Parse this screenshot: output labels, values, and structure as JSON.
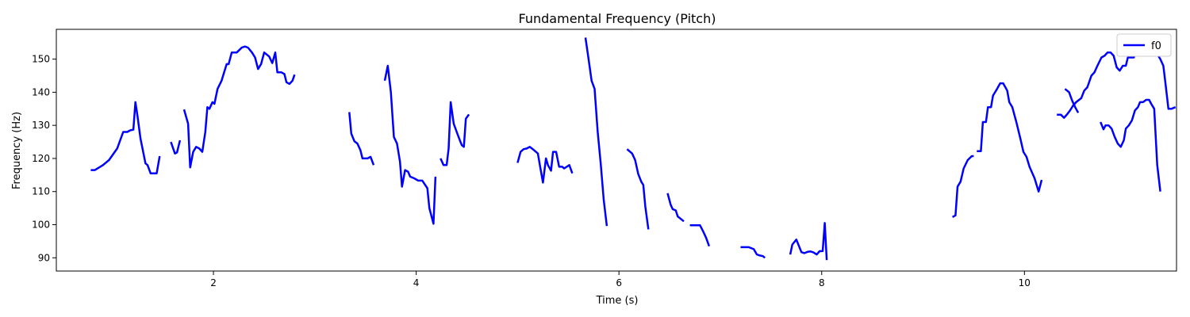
{
  "chart_data": {
    "type": "line",
    "title": "Fundamental Frequency (Pitch)",
    "xlabel": "Time (s)",
    "ylabel": "Frequency (Hz)",
    "xlim": [
      0.45,
      11.5
    ],
    "ylim": [
      86,
      159
    ],
    "xticks": [
      2,
      4,
      6,
      8,
      10
    ],
    "yticks": [
      90,
      100,
      110,
      120,
      130,
      140,
      150
    ],
    "grid": false,
    "legend_position": "top-right",
    "series": [
      {
        "name": "f0",
        "color": "#0000ff",
        "segments": [
          [
            [
              0.79,
              116.5
            ],
            [
              0.83,
              116.5
            ],
            [
              0.91,
              118
            ],
            [
              0.97,
              119.5
            ],
            [
              1.05,
              123
            ],
            [
              1.11,
              128
            ],
            [
              1.15,
              128
            ],
            [
              1.18,
              128.5
            ],
            [
              1.21,
              128.7
            ],
            [
              1.23,
              137
            ],
            [
              1.25,
              133
            ],
            [
              1.28,
              126
            ],
            [
              1.33,
              118.5
            ],
            [
              1.35,
              118
            ],
            [
              1.38,
              115.5
            ],
            [
              1.44,
              115.5
            ],
            [
              1.47,
              120.7
            ]
          ],
          [
            [
              1.58,
              125
            ],
            [
              1.62,
              121.5
            ],
            [
              1.64,
              121.8
            ],
            [
              1.67,
              125.5
            ]
          ],
          [
            [
              1.71,
              134.8
            ],
            [
              1.75,
              130.5
            ],
            [
              1.77,
              117.3
            ],
            [
              1.8,
              122
            ],
            [
              1.83,
              123.5
            ],
            [
              1.86,
              123
            ],
            [
              1.89,
              122
            ],
            [
              1.92,
              128
            ],
            [
              1.94,
              135.5
            ],
            [
              1.96,
              135
            ],
            [
              1.99,
              137
            ],
            [
              2.01,
              136.5
            ],
            [
              2.04,
              141
            ],
            [
              2.08,
              143.5
            ],
            [
              2.13,
              148.5
            ],
            [
              2.15,
              148.5
            ],
            [
              2.18,
              152
            ],
            [
              2.23,
              152
            ],
            [
              2.28,
              153.5
            ],
            [
              2.31,
              153.8
            ],
            [
              2.34,
              153.5
            ],
            [
              2.38,
              152
            ],
            [
              2.41,
              150.5
            ],
            [
              2.44,
              147
            ],
            [
              2.47,
              148.5
            ],
            [
              2.5,
              152
            ],
            [
              2.55,
              150.8
            ],
            [
              2.58,
              148.8
            ],
            [
              2.61,
              152
            ],
            [
              2.63,
              146
            ],
            [
              2.67,
              146
            ],
            [
              2.7,
              145.5
            ],
            [
              2.72,
              143
            ],
            [
              2.75,
              142.5
            ],
            [
              2.78,
              143.5
            ],
            [
              2.8,
              145.3
            ]
          ],
          [
            [
              3.34,
              134
            ],
            [
              3.36,
              127.5
            ],
            [
              3.39,
              125.2
            ],
            [
              3.42,
              124.5
            ],
            [
              3.45,
              122.5
            ],
            [
              3.47,
              120
            ],
            [
              3.52,
              120
            ],
            [
              3.55,
              120.5
            ],
            [
              3.58,
              118
            ]
          ],
          [
            [
              3.69,
              143.5
            ],
            [
              3.72,
              148
            ],
            [
              3.75,
              140
            ],
            [
              3.78,
              126.5
            ],
            [
              3.81,
              124.5
            ],
            [
              3.84,
              119
            ],
            [
              3.86,
              111.5
            ],
            [
              3.89,
              116.5
            ],
            [
              3.92,
              116
            ],
            [
              3.94,
              114.5
            ],
            [
              3.98,
              114
            ],
            [
              4.02,
              113.3
            ],
            [
              4.06,
              113.3
            ],
            [
              4.11,
              111
            ],
            [
              4.13,
              105
            ],
            [
              4.17,
              100.3
            ],
            [
              4.19,
              114.5
            ]
          ],
          [
            [
              4.24,
              120
            ],
            [
              4.27,
              118
            ],
            [
              4.3,
              118
            ],
            [
              4.32,
              123
            ],
            [
              4.34,
              137
            ],
            [
              4.37,
              130.5
            ],
            [
              4.4,
              128
            ],
            [
              4.43,
              125.5
            ],
            [
              4.45,
              124
            ],
            [
              4.47,
              123.5
            ],
            [
              4.49,
              132
            ],
            [
              4.52,
              133.3
            ]
          ],
          [
            [
              5.0,
              118.7
            ],
            [
              5.03,
              122
            ],
            [
              5.06,
              122.8
            ],
            [
              5.09,
              123
            ],
            [
              5.12,
              123.5
            ],
            [
              5.15,
              122.8
            ],
            [
              5.2,
              121.5
            ],
            [
              5.22,
              118
            ],
            [
              5.25,
              112.7
            ],
            [
              5.28,
              120
            ],
            [
              5.3,
              118
            ],
            [
              5.33,
              116.3
            ],
            [
              5.35,
              122
            ],
            [
              5.38,
              122
            ],
            [
              5.41,
              117.5
            ],
            [
              5.44,
              117.5
            ],
            [
              5.46,
              117
            ],
            [
              5.51,
              118
            ],
            [
              5.54,
              115.5
            ]
          ],
          [
            [
              5.67,
              156.5
            ],
            [
              5.7,
              150
            ],
            [
              5.73,
              143.5
            ],
            [
              5.76,
              141
            ],
            [
              5.79,
              128
            ],
            [
              5.82,
              118.5
            ],
            [
              5.85,
              107.5
            ],
            [
              5.88,
              99.6
            ]
          ],
          [
            [
              6.08,
              122.8
            ],
            [
              6.13,
              121.5
            ],
            [
              6.16,
              119.5
            ],
            [
              6.19,
              115.3
            ],
            [
              6.22,
              113
            ],
            [
              6.24,
              112
            ],
            [
              6.26,
              105.5
            ],
            [
              6.29,
              98.6
            ]
          ],
          [
            [
              6.48,
              109.5
            ],
            [
              6.51,
              106
            ],
            [
              6.53,
              104.7
            ],
            [
              6.56,
              104.3
            ],
            [
              6.58,
              102.5
            ],
            [
              6.6,
              102
            ],
            [
              6.64,
              101
            ]
          ],
          [
            [
              6.7,
              99.8
            ],
            [
              6.8,
              99.8
            ],
            [
              6.83,
              98
            ],
            [
              6.86,
              96
            ],
            [
              6.89,
              93.5
            ]
          ],
          [
            [
              7.2,
              93.2
            ],
            [
              7.28,
              93.2
            ],
            [
              7.33,
              92.6
            ],
            [
              7.36,
              91
            ],
            [
              7.39,
              90.7
            ],
            [
              7.42,
              90.5
            ],
            [
              7.44,
              90
            ]
          ],
          [
            [
              7.69,
              91
            ],
            [
              7.71,
              94
            ],
            [
              7.75,
              95.5
            ],
            [
              7.8,
              91.7
            ],
            [
              7.83,
              91.4
            ],
            [
              7.86,
              91.8
            ],
            [
              7.89,
              91.9
            ],
            [
              7.92,
              91.6
            ],
            [
              7.95,
              91
            ],
            [
              7.98,
              92
            ],
            [
              8.01,
              92
            ],
            [
              8.03,
              100.5
            ],
            [
              8.05,
              89.3
            ]
          ],
          [
            [
              9.29,
              102.3
            ],
            [
              9.32,
              102.8
            ],
            [
              9.34,
              111.5
            ],
            [
              9.37,
              113
            ],
            [
              9.4,
              117
            ],
            [
              9.44,
              119.5
            ],
            [
              9.48,
              120.7
            ],
            [
              9.5,
              120.7
            ]
          ],
          [
            [
              9.53,
              122.2
            ],
            [
              9.57,
              122.2
            ],
            [
              9.59,
              131
            ],
            [
              9.62,
              131
            ],
            [
              9.64,
              135.5
            ],
            [
              9.67,
              135.5
            ],
            [
              9.69,
              139
            ],
            [
              9.73,
              141
            ],
            [
              9.76,
              142.7
            ],
            [
              9.79,
              142.7
            ],
            [
              9.83,
              140.5
            ],
            [
              9.85,
              137
            ],
            [
              9.88,
              135.5
            ],
            [
              9.92,
              131
            ],
            [
              9.96,
              126
            ],
            [
              9.99,
              122
            ],
            [
              10.02,
              120.5
            ],
            [
              10.05,
              117.5
            ],
            [
              10.1,
              114
            ],
            [
              10.14,
              110
            ],
            [
              10.17,
              113.5
            ]
          ],
          [
            [
              10.32,
              133.2
            ],
            [
              10.36,
              133.2
            ],
            [
              10.39,
              132.3
            ],
            [
              10.42,
              133.3
            ],
            [
              10.45,
              134.5
            ],
            [
              10.48,
              136
            ],
            [
              10.51,
              137
            ],
            [
              10.56,
              138.2
            ],
            [
              10.59,
              140.5
            ],
            [
              10.62,
              141.5
            ],
            [
              10.66,
              145
            ],
            [
              10.69,
              146
            ],
            [
              10.72,
              148
            ],
            [
              10.76,
              150.5
            ],
            [
              10.79,
              151
            ],
            [
              10.82,
              152
            ],
            [
              10.85,
              152
            ],
            [
              10.88,
              151
            ],
            [
              10.91,
              147.5
            ],
            [
              10.94,
              146.5
            ],
            [
              10.97,
              148
            ],
            [
              11.0,
              148
            ],
            [
              11.02,
              150.5
            ],
            [
              11.05,
              150.5
            ],
            [
              11.08,
              150.5
            ],
            [
              11.11,
              155
            ],
            [
              11.14,
              155
            ],
            [
              11.17,
              154
            ],
            [
              11.2,
              155
            ],
            [
              11.23,
              155
            ],
            [
              11.26,
              153.5
            ],
            [
              11.3,
              152
            ],
            [
              11.34,
              150
            ],
            [
              11.37,
              148
            ],
            [
              11.39,
              143
            ],
            [
              11.42,
              135
            ],
            [
              11.45,
              135
            ],
            [
              11.49,
              135.5
            ]
          ]
        ],
        "segments_right": [
          [
            [
              10.4,
              141
            ],
            [
              10.44,
              140
            ],
            [
              10.47,
              137.5
            ],
            [
              10.5,
              135.5
            ],
            [
              10.53,
              133.8
            ]
          ],
          [
            [
              10.75,
              131
            ],
            [
              10.78,
              128.8
            ],
            [
              10.8,
              130
            ],
            [
              10.83,
              130
            ],
            [
              10.86,
              129
            ],
            [
              10.89,
              126.5
            ],
            [
              10.92,
              124.5
            ],
            [
              10.95,
              123.5
            ],
            [
              10.98,
              125.5
            ],
            [
              11.0,
              129
            ],
            [
              11.03,
              130
            ],
            [
              11.06,
              131.5
            ],
            [
              11.09,
              134.5
            ],
            [
              11.12,
              135.5
            ],
            [
              11.14,
              137
            ],
            [
              11.17,
              137
            ],
            [
              11.2,
              137.7
            ],
            [
              11.23,
              137.7
            ],
            [
              11.25,
              136.5
            ],
            [
              11.28,
              135
            ],
            [
              11.31,
              118
            ],
            [
              11.34,
              110
            ]
          ]
        ]
      }
    ]
  }
}
